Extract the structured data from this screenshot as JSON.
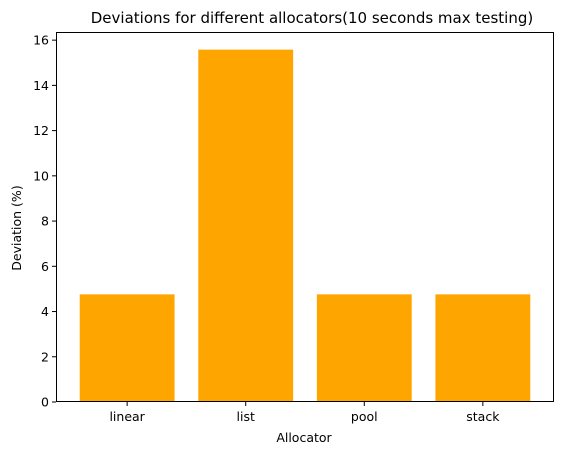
{
  "chart_data": {
    "type": "bar",
    "title": "Deviations for different allocators(10 seconds max testing)",
    "xlabel": "Allocator",
    "ylabel": "Deviation (%)",
    "categories": [
      "linear",
      "list",
      "pool",
      "stack"
    ],
    "values": [
      4.76,
      15.58,
      4.76,
      4.76
    ],
    "ylim": [
      0,
      16.36
    ],
    "yticks": [
      0,
      2,
      4,
      6,
      8,
      10,
      12,
      14,
      16
    ],
    "ytick_labels": [
      "0",
      "2",
      "4",
      "6",
      "8",
      "10",
      "12",
      "14",
      "16"
    ],
    "bar_color": "#FFA500",
    "grid": false,
    "legend": "none"
  }
}
